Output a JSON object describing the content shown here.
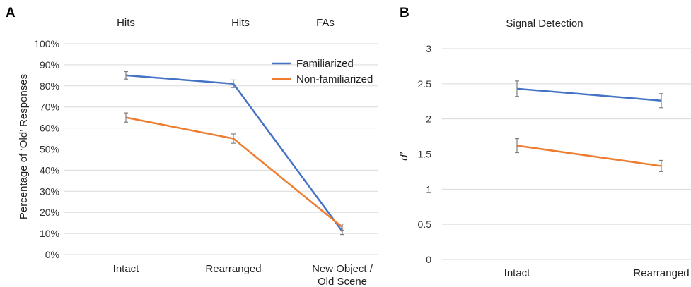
{
  "chart_data": [
    {
      "panel": "A",
      "type": "line",
      "column_headers": [
        "Hits",
        "Hits",
        "FAs"
      ],
      "categories": [
        "Intact",
        "Rearranged",
        "New Object / Old Scene"
      ],
      "ylabel": "Percentage of ‘Old’ Responses",
      "ylim": [
        0,
        100
      ],
      "yticks": [
        "0%",
        "10%",
        "20%",
        "30%",
        "40%",
        "50%",
        "60%",
        "70%",
        "80%",
        "90%",
        "100%"
      ],
      "grid": true,
      "legend_position": "top-right",
      "series": [
        {
          "name": "Familiarized",
          "color": "#4472c4",
          "values": [
            85,
            81,
            11
          ],
          "errors": [
            1.8,
            1.8,
            1.5
          ]
        },
        {
          "name": "Non-familiarized",
          "color": "#ed7d31",
          "values": [
            65,
            55,
            13
          ],
          "errors": [
            2.2,
            2.2,
            1.5
          ]
        }
      ]
    },
    {
      "panel": "B",
      "type": "line",
      "title": "Signal Detection",
      "categories": [
        "Intact",
        "Rearranged"
      ],
      "ylabel": "d’",
      "ylim": [
        0,
        3
      ],
      "yticks": [
        "0",
        "0.5",
        "1",
        "1.5",
        "2",
        "2.5",
        "3"
      ],
      "grid": true,
      "series": [
        {
          "color": "#4472c4",
          "values": [
            2.43,
            2.26
          ],
          "errors": [
            0.11,
            0.1
          ]
        },
        {
          "color": "#ed7d31",
          "values": [
            1.62,
            1.33
          ],
          "errors": [
            0.1,
            0.08
          ]
        }
      ]
    }
  ]
}
